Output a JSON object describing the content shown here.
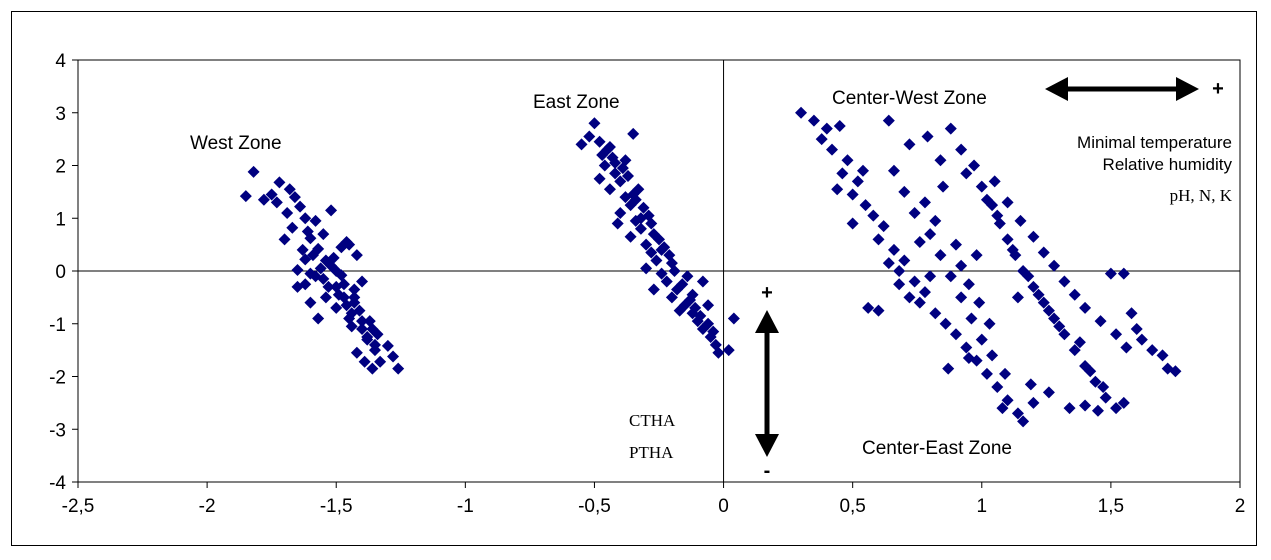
{
  "colors": {
    "marker": "#000080",
    "axis": "#000000",
    "background": "#ffffff"
  },
  "chart_data": {
    "type": "scatter",
    "marker": "diamond",
    "xlim": [
      -2.5,
      2
    ],
    "ylim": [
      -4,
      4
    ],
    "xticks": [
      "-2,5",
      "-2",
      "-1,5",
      "-1",
      "-0,5",
      "0",
      "0,5",
      "1",
      "1,5",
      "2"
    ],
    "yticks": [
      "4",
      "3",
      "2",
      "1",
      "0",
      "-1",
      "-2",
      "-3",
      "-4"
    ],
    "annotations": {
      "west_zone": "West Zone",
      "east_zone": "East Zone",
      "center_west_zone": "Center-West Zone",
      "center_east_zone": "Center-East Zone",
      "min_temp": "Minimal temperature",
      "rel_humidity": "Relative humidity",
      "ph_nk": "pH, N, K",
      "ctha": "CTHA",
      "ptha": "PTHA",
      "plus_x": "+",
      "plus_y": "+",
      "minus_y": "-"
    },
    "series": [
      {
        "values": [
          [
            -1.82,
            1.88
          ],
          [
            -1.85,
            1.42
          ],
          [
            -1.78,
            1.35
          ],
          [
            -1.75,
            1.45
          ],
          [
            -1.72,
            1.68
          ],
          [
            -1.68,
            1.55
          ],
          [
            -1.64,
            1.22
          ],
          [
            -1.62,
            1.0
          ],
          [
            -1.67,
            0.82
          ],
          [
            -1.6,
            0.62
          ],
          [
            -1.57,
            0.42
          ],
          [
            -1.62,
            0.22
          ],
          [
            -1.65,
            0.02
          ],
          [
            -1.6,
            -0.05
          ],
          [
            -1.55,
            -0.15
          ],
          [
            -1.52,
            0.1
          ],
          [
            -1.5,
            -0.3
          ],
          [
            -1.47,
            -0.5
          ],
          [
            -1.5,
            -0.7
          ],
          [
            -1.45,
            -0.9
          ],
          [
            -1.4,
            -1.1
          ],
          [
            -1.38,
            -1.3
          ],
          [
            -1.35,
            -1.5
          ],
          [
            -1.33,
            -1.72
          ],
          [
            -1.36,
            -1.85
          ],
          [
            -1.26,
            -1.85
          ],
          [
            -1.3,
            -1.42
          ],
          [
            -1.43,
            -0.6
          ],
          [
            -1.48,
            0.45
          ],
          [
            -1.55,
            0.7
          ],
          [
            -1.58,
            0.95
          ],
          [
            -1.52,
            1.15
          ],
          [
            -1.45,
            0.5
          ],
          [
            -1.42,
            0.3
          ],
          [
            -1.4,
            -0.2
          ],
          [
            -1.46,
            0.55
          ],
          [
            -1.54,
            -0.5
          ],
          [
            -1.57,
            -0.9
          ],
          [
            -1.42,
            -1.55
          ],
          [
            -1.39,
            -1.72
          ],
          [
            -1.28,
            -1.62
          ],
          [
            -1.34,
            -1.2
          ],
          [
            -1.7,
            0.6
          ],
          [
            -1.65,
            -0.3
          ],
          [
            -1.6,
            -0.6
          ],
          [
            -1.44,
            -1.05
          ],
          [
            -1.63,
            0.4
          ],
          [
            -1.51,
            0.25
          ],
          [
            -1.48,
            -0.08
          ],
          [
            -1.43,
            -0.35
          ],
          [
            -1.41,
            -0.75
          ],
          [
            -1.37,
            -0.95
          ],
          [
            -1.36,
            -1.1
          ],
          [
            -1.56,
            0.05
          ],
          [
            -1.59,
            0.3
          ],
          [
            -1.61,
            0.75
          ],
          [
            -1.69,
            1.1
          ],
          [
            -1.73,
            1.3
          ],
          [
            -1.66,
            1.4
          ],
          [
            -1.53,
            -0.3
          ],
          [
            -1.49,
            -0.45
          ],
          [
            -1.46,
            -0.65
          ],
          [
            -1.44,
            -0.8
          ],
          [
            -1.4,
            -0.95
          ],
          [
            -1.38,
            -1.25
          ],
          [
            -1.35,
            -1.4
          ],
          [
            -1.5,
            0.0
          ],
          [
            -1.54,
            0.2
          ],
          [
            -1.58,
            -0.1
          ],
          [
            -1.62,
            -0.25
          ],
          [
            -1.47,
            -0.25
          ],
          [
            -1.43,
            -0.5
          ],
          [
            -0.5,
            2.8
          ],
          [
            -0.55,
            2.4
          ],
          [
            -0.52,
            2.55
          ],
          [
            -0.48,
            2.45
          ],
          [
            -0.45,
            2.3
          ],
          [
            -0.43,
            2.15
          ],
          [
            -0.46,
            2.0
          ],
          [
            -0.42,
            1.85
          ],
          [
            -0.4,
            1.7
          ],
          [
            -0.44,
            1.55
          ],
          [
            -0.38,
            1.4
          ],
          [
            -0.36,
            1.25
          ],
          [
            -0.4,
            1.1
          ],
          [
            -0.34,
            0.95
          ],
          [
            -0.32,
            0.8
          ],
          [
            -0.36,
            0.65
          ],
          [
            -0.3,
            0.5
          ],
          [
            -0.28,
            0.35
          ],
          [
            -0.26,
            0.2
          ],
          [
            -0.3,
            0.05
          ],
          [
            -0.24,
            -0.05
          ],
          [
            -0.22,
            -0.2
          ],
          [
            -0.18,
            -0.35
          ],
          [
            -0.2,
            -0.5
          ],
          [
            -0.15,
            -0.65
          ],
          [
            -0.12,
            -0.8
          ],
          [
            -0.1,
            -0.95
          ],
          [
            -0.08,
            -1.1
          ],
          [
            -0.05,
            -1.25
          ],
          [
            -0.03,
            -1.4
          ],
          [
            -0.02,
            -1.55
          ],
          [
            0.02,
            -1.5
          ],
          [
            0.04,
            -0.9
          ],
          [
            -0.35,
            2.6
          ],
          [
            -0.38,
            2.1
          ],
          [
            -0.33,
            1.55
          ],
          [
            -0.29,
            1.05
          ],
          [
            -0.25,
            0.6
          ],
          [
            -0.2,
            0.15
          ],
          [
            -0.14,
            -0.1
          ],
          [
            -0.12,
            -0.45
          ],
          [
            -0.08,
            -0.2
          ],
          [
            -0.48,
            1.75
          ],
          [
            -0.41,
            0.9
          ],
          [
            -0.27,
            -0.35
          ],
          [
            -0.17,
            -0.75
          ],
          [
            -0.06,
            -0.65
          ],
          [
            -0.44,
            2.35
          ],
          [
            -0.39,
            1.95
          ],
          [
            -0.37,
            1.8
          ],
          [
            -0.35,
            1.45
          ],
          [
            -0.31,
            1.2
          ],
          [
            -0.28,
            0.9
          ],
          [
            -0.27,
            0.7
          ],
          [
            -0.23,
            0.45
          ],
          [
            -0.21,
            0.3
          ],
          [
            -0.19,
            0.0
          ],
          [
            -0.16,
            -0.25
          ],
          [
            -0.13,
            -0.55
          ],
          [
            -0.11,
            -0.7
          ],
          [
            -0.09,
            -0.85
          ],
          [
            -0.06,
            -1.0
          ],
          [
            -0.04,
            -1.15
          ],
          [
            -0.47,
            2.2
          ],
          [
            -0.42,
            2.05
          ],
          [
            -0.34,
            1.35
          ],
          [
            -0.32,
            1.0
          ],
          [
            -0.24,
            0.4
          ],
          [
            0.3,
            3.0
          ],
          [
            0.35,
            2.85
          ],
          [
            0.4,
            2.7
          ],
          [
            0.38,
            2.5
          ],
          [
            0.45,
            2.75
          ],
          [
            0.42,
            2.3
          ],
          [
            0.48,
            2.1
          ],
          [
            0.46,
            1.85
          ],
          [
            0.52,
            1.7
          ],
          [
            0.5,
            1.45
          ],
          [
            0.55,
            1.25
          ],
          [
            0.58,
            1.05
          ],
          [
            0.62,
            0.85
          ],
          [
            0.6,
            0.6
          ],
          [
            0.66,
            0.4
          ],
          [
            0.7,
            0.2
          ],
          [
            0.68,
            0.0
          ],
          [
            0.74,
            -0.2
          ],
          [
            0.78,
            -0.4
          ],
          [
            0.76,
            -0.6
          ],
          [
            0.82,
            -0.8
          ],
          [
            0.86,
            -1.0
          ],
          [
            0.9,
            -1.2
          ],
          [
            0.94,
            -1.45
          ],
          [
            0.98,
            -1.7
          ],
          [
            1.02,
            -1.95
          ],
          [
            1.06,
            -2.2
          ],
          [
            1.1,
            -2.45
          ],
          [
            1.14,
            -2.7
          ],
          [
            1.16,
            -2.85
          ],
          [
            1.08,
            -2.6
          ],
          [
            1.2,
            -2.5
          ],
          [
            0.64,
            2.85
          ],
          [
            0.72,
            2.4
          ],
          [
            0.66,
            1.9
          ],
          [
            0.7,
            1.5
          ],
          [
            0.74,
            1.1
          ],
          [
            0.8,
            0.7
          ],
          [
            0.84,
            0.3
          ],
          [
            0.88,
            -0.1
          ],
          [
            0.92,
            -0.5
          ],
          [
            0.96,
            -0.9
          ],
          [
            1.0,
            -1.3
          ],
          [
            1.04,
            -1.6
          ],
          [
            0.56,
            -0.7
          ],
          [
            0.6,
            -0.75
          ],
          [
            0.85,
            1.6
          ],
          [
            0.54,
            1.9
          ],
          [
            0.78,
            1.3
          ],
          [
            0.82,
            0.95
          ],
          [
            0.76,
            0.55
          ],
          [
            0.8,
            -0.1
          ],
          [
            0.72,
            -0.5
          ],
          [
            0.68,
            -0.25
          ],
          [
            0.64,
            0.15
          ],
          [
            0.5,
            0.9
          ],
          [
            0.44,
            1.55
          ],
          [
            0.9,
            0.5
          ],
          [
            0.92,
            0.1
          ],
          [
            0.95,
            -0.25
          ],
          [
            0.99,
            -0.6
          ],
          [
            1.03,
            -1.0
          ],
          [
            0.84,
            2.1
          ],
          [
            0.79,
            2.55
          ],
          [
            0.88,
            2.7
          ],
          [
            0.92,
            2.3
          ],
          [
            0.97,
            2.0
          ],
          [
            1.0,
            1.6
          ],
          [
            1.04,
            1.25
          ],
          [
            1.07,
            0.9
          ],
          [
            1.1,
            0.6
          ],
          [
            1.13,
            0.3
          ],
          [
            1.16,
            0.0
          ],
          [
            1.2,
            -0.3
          ],
          [
            1.24,
            -0.6
          ],
          [
            1.28,
            -0.9
          ],
          [
            1.32,
            -1.2
          ],
          [
            1.36,
            -1.5
          ],
          [
            1.4,
            -1.8
          ],
          [
            1.44,
            -2.1
          ],
          [
            1.48,
            -2.4
          ],
          [
            1.52,
            -2.6
          ],
          [
            1.55,
            -2.5
          ],
          [
            1.4,
            -2.55
          ],
          [
            1.34,
            -2.6
          ],
          [
            1.45,
            -2.65
          ],
          [
            0.94,
            1.85
          ],
          [
            1.02,
            1.35
          ],
          [
            1.06,
            1.05
          ],
          [
            1.12,
            0.4
          ],
          [
            1.18,
            -0.1
          ],
          [
            1.22,
            -0.45
          ],
          [
            1.26,
            -0.75
          ],
          [
            1.3,
            -1.05
          ],
          [
            1.38,
            -1.35
          ],
          [
            1.42,
            -1.9
          ],
          [
            1.47,
            -2.2
          ],
          [
            1.5,
            -0.05
          ],
          [
            1.55,
            -0.05
          ],
          [
            1.58,
            -0.8
          ],
          [
            1.6,
            -1.1
          ],
          [
            1.62,
            -1.3
          ],
          [
            1.66,
            -1.5
          ],
          [
            1.7,
            -1.6
          ],
          [
            1.72,
            -1.85
          ],
          [
            1.75,
            -1.9
          ],
          [
            1.56,
            -1.45
          ],
          [
            1.52,
            -1.2
          ],
          [
            1.46,
            -0.95
          ],
          [
            1.4,
            -0.7
          ],
          [
            1.36,
            -0.45
          ],
          [
            1.32,
            -0.2
          ],
          [
            1.28,
            0.1
          ],
          [
            1.24,
            0.35
          ],
          [
            1.2,
            0.65
          ],
          [
            1.15,
            0.95
          ],
          [
            1.1,
            1.3
          ],
          [
            1.05,
            1.7
          ],
          [
            1.14,
            -0.5
          ],
          [
            0.98,
            0.3
          ],
          [
            0.95,
            -1.65
          ],
          [
            0.87,
            -1.85
          ],
          [
            1.09,
            -1.95
          ],
          [
            1.19,
            -2.15
          ],
          [
            1.26,
            -2.3
          ]
        ]
      }
    ]
  }
}
